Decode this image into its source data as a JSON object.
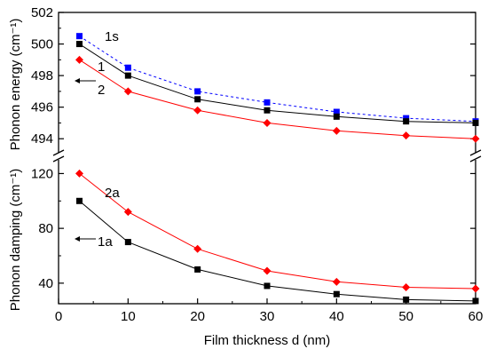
{
  "chart_data": {
    "type": "line",
    "xlabel": "Film thickness d (nm)",
    "xlim": [
      0,
      60
    ],
    "xticks": [
      0,
      10,
      20,
      30,
      40,
      50,
      60
    ],
    "legend": "none",
    "grid": false,
    "panels": [
      {
        "id": "energy",
        "ylabel": "Phonon energy (cm⁻¹)",
        "ylim": [
          493,
          502
        ],
        "yticks": [
          494,
          496,
          498,
          500,
          502
        ],
        "series": [
          {
            "name": "1s",
            "color": "#0000ff",
            "marker": "square",
            "line": "dashed",
            "x": [
              3,
              10,
              20,
              30,
              40,
              50,
              60
            ],
            "y": [
              500.5,
              498.5,
              497.0,
              496.3,
              495.7,
              495.3,
              495.1
            ]
          },
          {
            "name": "1",
            "color": "#000000",
            "marker": "square",
            "line": "solid",
            "x": [
              3,
              10,
              20,
              30,
              40,
              50,
              60
            ],
            "y": [
              500.0,
              498.0,
              496.5,
              495.8,
              495.4,
              495.1,
              495.0
            ]
          },
          {
            "name": "2",
            "color": "#ff0000",
            "marker": "diamond",
            "line": "solid",
            "x": [
              3,
              10,
              20,
              30,
              40,
              50,
              60
            ],
            "y": [
              499.0,
              497.0,
              495.8,
              495.0,
              494.5,
              494.2,
              494.0
            ]
          }
        ]
      },
      {
        "id": "damping",
        "ylabel": "Phonon damping (cm⁻¹)",
        "ylim": [
          25,
          130
        ],
        "yticks": [
          40,
          80,
          120
        ],
        "series": [
          {
            "name": "2a",
            "color": "#ff0000",
            "marker": "diamond",
            "line": "solid",
            "x": [
              3,
              10,
              20,
              30,
              40,
              50,
              60
            ],
            "y": [
              120,
              92,
              65,
              49,
              41,
              37,
              36
            ]
          },
          {
            "name": "1a",
            "color": "#000000",
            "marker": "square",
            "line": "solid",
            "x": [
              3,
              10,
              20,
              30,
              40,
              50,
              60
            ],
            "y": [
              100,
              70,
              50,
              38,
              32,
              28,
              27
            ]
          }
        ]
      }
    ]
  }
}
